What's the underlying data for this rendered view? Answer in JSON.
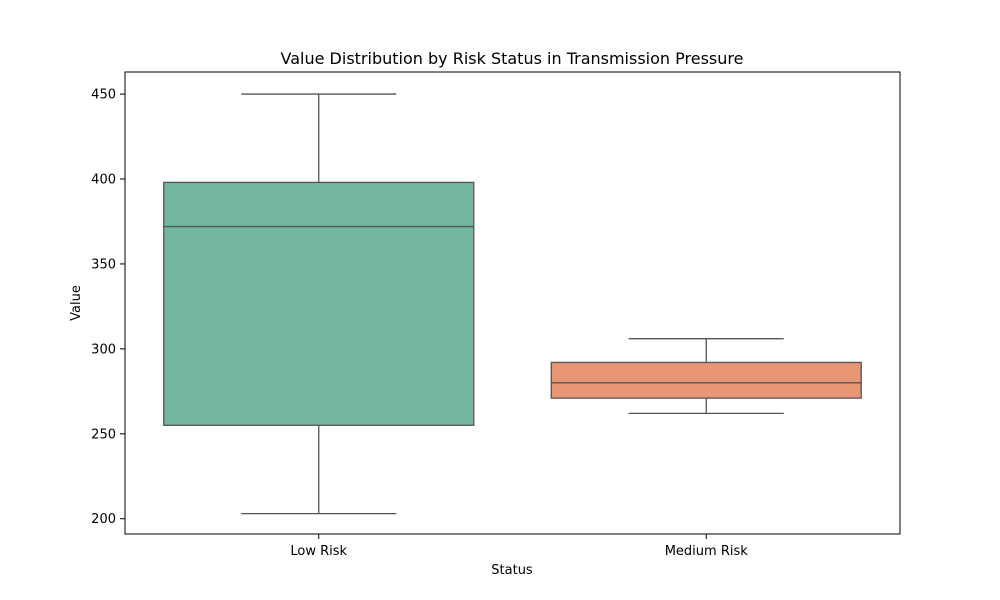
{
  "chart_data": {
    "type": "box",
    "title": "Value Distribution by Risk Status in Transmission Pressure",
    "xlabel": "Status",
    "ylabel": "Value",
    "ylim": [
      191,
      463
    ],
    "yticks": [
      200,
      250,
      300,
      350,
      400,
      450
    ],
    "grid": false,
    "categories": [
      "Low Risk",
      "Medium Risk"
    ],
    "boxes": [
      {
        "category": "Low Risk",
        "whisker_low": 203,
        "q1": 255,
        "median": 372,
        "q3": 398,
        "whisker_high": 450,
        "color": "#73b6a0"
      },
      {
        "category": "Medium Risk",
        "whisker_low": 262,
        "q1": 271,
        "median": 280,
        "q3": 292,
        "whisker_high": 306,
        "color": "#e99675"
      }
    ],
    "colors": {
      "frame": "#000000",
      "box_edge": "#555555"
    }
  }
}
